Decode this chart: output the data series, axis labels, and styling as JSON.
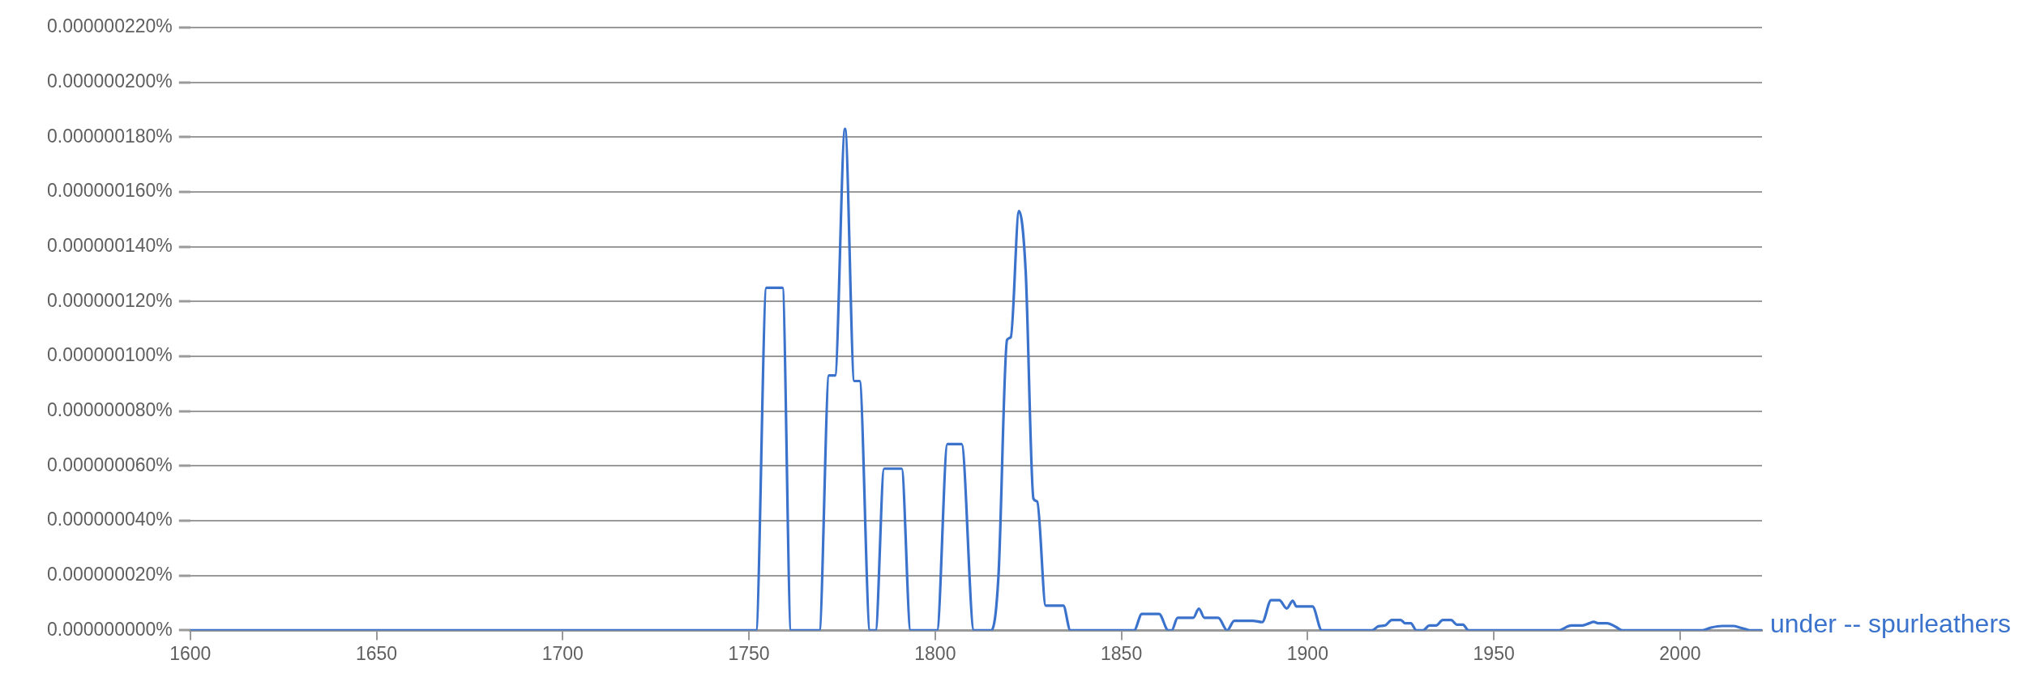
{
  "chart_data": {
    "type": "line",
    "x": [
      1600,
      1751.9,
      1754.7,
      1759,
      1761.3,
      1768.9,
      1771.5,
      1773.1,
      1775.8,
      1778.3,
      1779.7,
      1782.5,
      1784,
      1786.3,
      1791,
      1793.4,
      1800.5,
      1803.3,
      1807.1,
      1810.4,
      1815.1,
      1817,
      1819.3,
      1820.3,
      1822.5,
      1824.3,
      1826.4,
      1827.4,
      1829.7,
      1834.4,
      1836.3,
      1853.4,
      1855.5,
      1860.1,
      1862.6,
      1863.5,
      1865.1,
      1869.3,
      1870.8,
      1872.3,
      1876,
      1878.4,
      1880.3,
      1885.3,
      1887.8,
      1890.2,
      1892.4,
      1894.4,
      1896,
      1897,
      1901.3,
      1903.8,
      1917.3,
      1919,
      1920.8,
      1922.6,
      1925,
      1926.2,
      1927.7,
      1929.2,
      1931,
      1932.7,
      1934.5,
      1936.3,
      1938.5,
      1940.1,
      1941.7,
      1943.2,
      1967.3,
      1970.8,
      1973.8,
      1975.6,
      1976.8,
      1978,
      1980.4,
      1982.7,
      1984.5,
      2006,
      2008.3,
      2011.3,
      2014.3,
      2016.1,
      2017.9,
      2019,
      2022
    ],
    "series": [
      {
        "name": "under -- spurleathers",
        "color": "#3b73cc",
        "values": [
          0,
          0,
          1.25e-07,
          1.25e-07,
          0,
          0,
          9.3e-08,
          9.3e-08,
          1.83e-07,
          9.1e-08,
          9.1e-08,
          0,
          0,
          5.9e-08,
          5.9e-08,
          0,
          0,
          6.8e-08,
          6.8e-08,
          0,
          0,
          2e-08,
          1.06e-07,
          1.07e-07,
          1.53e-07,
          1.31e-07,
          4.8e-08,
          4.7e-08,
          9e-09,
          9e-09,
          0,
          0,
          6e-09,
          6e-09,
          0,
          0,
          4.6e-09,
          4.6e-09,
          7.9e-09,
          4.6e-09,
          4.6e-09,
          0,
          3.5e-09,
          3.5e-09,
          3e-09,
          1.1e-08,
          1.1e-08,
          8e-09,
          1.08e-08,
          8.7e-09,
          8.7e-09,
          0,
          0,
          1.5e-09,
          1.8e-09,
          3.8e-09,
          3.8e-09,
          2.6e-09,
          2.6e-09,
          0,
          0,
          1.8e-09,
          1.8e-09,
          3.8e-09,
          3.8e-09,
          2.1e-09,
          2.1e-09,
          0,
          0,
          1.8e-09,
          1.8e-09,
          2.6e-09,
          3.1e-09,
          2.6e-09,
          2.6e-09,
          1.3e-09,
          0,
          0,
          1e-09,
          1.6e-09,
          1.6e-09,
          1e-09,
          3e-10,
          0,
          0
        ]
      }
    ],
    "xlim": [
      1600,
      2022
    ],
    "xticks": [
      1600,
      1650,
      1700,
      1750,
      1800,
      1850,
      1900,
      1950,
      2000
    ],
    "ylim": [
      0,
      2.2e-07
    ],
    "yticks": [
      {
        "value": 0,
        "label": "0.000000000%"
      },
      {
        "value": 2e-08,
        "label": "0.000000020%"
      },
      {
        "value": 4e-08,
        "label": "0.000000040%"
      },
      {
        "value": 6e-08,
        "label": "0.000000060%"
      },
      {
        "value": 8e-08,
        "label": "0.000000080%"
      },
      {
        "value": 1e-07,
        "label": "0.000000100%"
      },
      {
        "value": 1.2e-07,
        "label": "0.000000120%"
      },
      {
        "value": 1.4e-07,
        "label": "0.000000140%"
      },
      {
        "value": 1.6e-07,
        "label": "0.000000160%"
      },
      {
        "value": 1.8e-07,
        "label": "0.000000180%"
      },
      {
        "value": 2e-07,
        "label": "0.000000200%"
      },
      {
        "value": 2.2e-07,
        "label": "0.000000220%"
      }
    ],
    "grid": "y",
    "marker": "none",
    "line_style": "solid"
  }
}
